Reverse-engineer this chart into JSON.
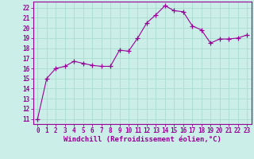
{
  "x": [
    0,
    1,
    2,
    3,
    4,
    5,
    6,
    7,
    8,
    9,
    10,
    11,
    12,
    13,
    14,
    15,
    16,
    17,
    18,
    19,
    20,
    21,
    22,
    23
  ],
  "y": [
    11,
    15,
    16,
    16.2,
    16.7,
    16.5,
    16.3,
    16.2,
    16.2,
    17.8,
    17.7,
    19.0,
    20.5,
    21.3,
    22.2,
    21.7,
    21.6,
    20.2,
    19.8,
    18.5,
    18.9,
    18.9,
    19.0,
    19.3
  ],
  "color": "#990099",
  "bg_color": "#cceee8",
  "grid_color": "#aaddcc",
  "ylabel_ticks": [
    11,
    12,
    13,
    14,
    15,
    16,
    17,
    18,
    19,
    20,
    21,
    22
  ],
  "ylim": [
    10.5,
    22.6
  ],
  "xlim": [
    -0.5,
    23.5
  ],
  "xlabel": "Windchill (Refroidissement éolien,°C)",
  "marker": "+",
  "markersize": 4,
  "linewidth": 0.8,
  "tick_fontsize": 5.5,
  "xlabel_fontsize": 6.5
}
